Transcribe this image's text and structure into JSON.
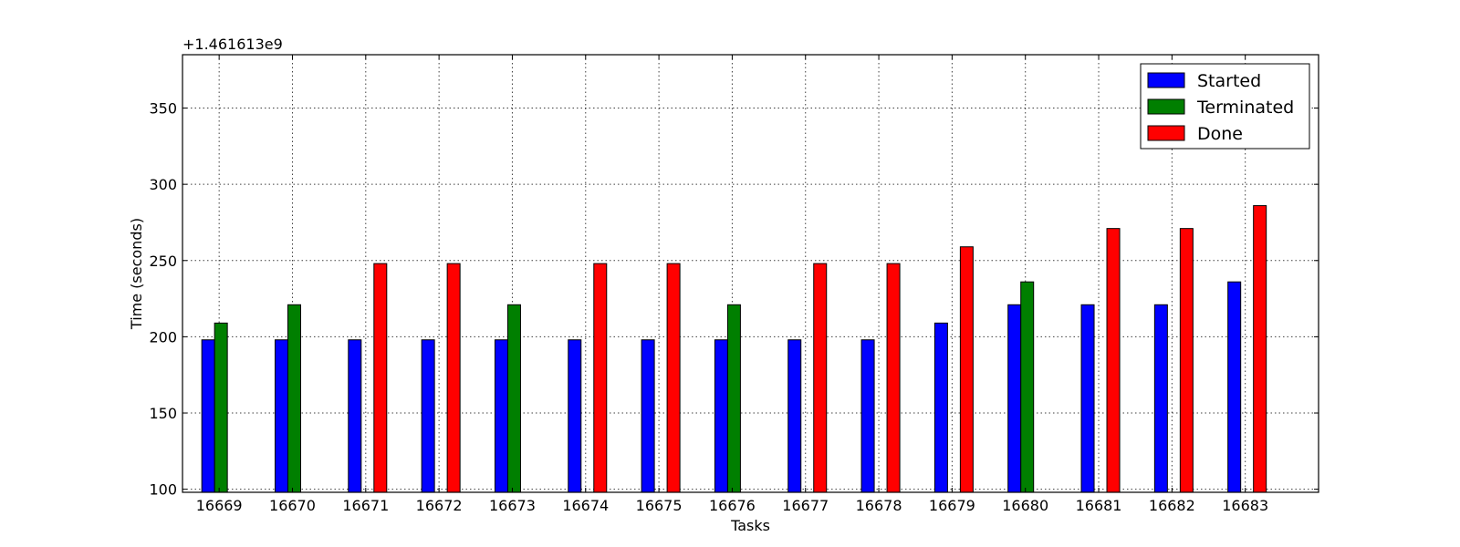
{
  "chart_data": {
    "type": "bar",
    "title": "",
    "xlabel": "Tasks",
    "ylabel": "Time (seconds)",
    "y_offset_label": "+1.461613e9",
    "categories": [
      "16669",
      "16670",
      "16671",
      "16672",
      "16673",
      "16674",
      "16675",
      "16676",
      "16677",
      "16678",
      "16679",
      "16680",
      "16681",
      "16682",
      "16683"
    ],
    "series": [
      {
        "name": "Started",
        "color": "#0000ff",
        "values": [
          198,
          198,
          198,
          198,
          198,
          198,
          198,
          198,
          198,
          198,
          209,
          221,
          221,
          221,
          236
        ]
      },
      {
        "name": "Terminated",
        "color": "#007f00",
        "values": [
          209,
          221,
          null,
          null,
          221,
          null,
          null,
          221,
          null,
          null,
          null,
          236,
          null,
          null,
          null
        ]
      },
      {
        "name": "Done",
        "color": "#ff0000",
        "values": [
          null,
          null,
          248,
          248,
          null,
          248,
          248,
          null,
          248,
          248,
          259,
          null,
          271,
          271,
          286
        ]
      }
    ],
    "ylim": [
      98,
      385
    ],
    "yticks": [
      100,
      150,
      200,
      250,
      300,
      350
    ],
    "grid": true,
    "legend_position": "top-right"
  }
}
